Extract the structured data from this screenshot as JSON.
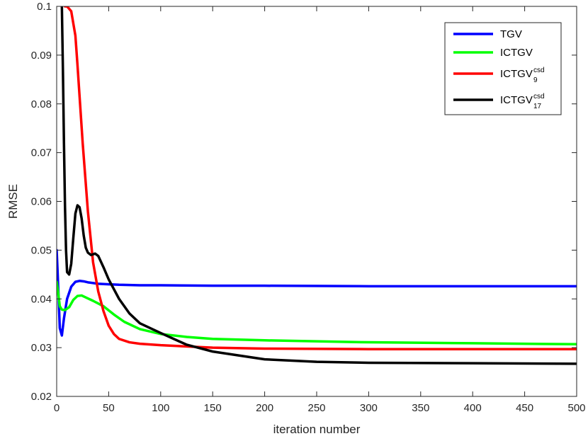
{
  "chart_data": {
    "type": "line",
    "xlabel": "iteration number",
    "ylabel": "RMSE",
    "xlim": [
      0,
      500
    ],
    "ylim": [
      0.02,
      0.1
    ],
    "xticks": [
      0,
      50,
      100,
      150,
      200,
      250,
      300,
      350,
      400,
      450,
      500
    ],
    "yticks": [
      0.02,
      0.03,
      0.04,
      0.05,
      0.06,
      0.07,
      0.08,
      0.09,
      0.1
    ],
    "xtick_labels": [
      "0",
      "50",
      "100",
      "150",
      "200",
      "250",
      "300",
      "350",
      "400",
      "450",
      "500"
    ],
    "ytick_labels": [
      "0.02",
      "0.03",
      "0.04",
      "0.05",
      "0.06",
      "0.07",
      "0.08",
      "0.09",
      "0.1"
    ],
    "grid": false,
    "legend_position": "top-right",
    "series": [
      {
        "name": "TGV",
        "label_main": "TGV",
        "label_sup": "",
        "label_sub": "",
        "color": "#0000ff",
        "x": [
          0,
          1,
          3,
          5,
          7,
          10,
          14,
          18,
          22,
          26,
          30,
          40,
          50,
          60,
          80,
          100,
          150,
          200,
          300,
          400,
          500
        ],
        "y": [
          0.05,
          0.045,
          0.034,
          0.0325,
          0.036,
          0.04,
          0.0425,
          0.0435,
          0.0437,
          0.0436,
          0.0434,
          0.0431,
          0.043,
          0.0429,
          0.0428,
          0.0428,
          0.0427,
          0.0427,
          0.0426,
          0.0426,
          0.0426
        ]
      },
      {
        "name": "ICTGV",
        "label_main": "ICTGV",
        "label_sup": "",
        "label_sub": "",
        "color": "#00ff00",
        "x": [
          0,
          1,
          3,
          5,
          8,
          12,
          16,
          20,
          24,
          28,
          35,
          45,
          55,
          65,
          80,
          100,
          125,
          150,
          200,
          300,
          400,
          500
        ],
        "y": [
          0.0435,
          0.042,
          0.0385,
          0.0378,
          0.0377,
          0.0383,
          0.0398,
          0.0406,
          0.0407,
          0.0403,
          0.0396,
          0.0385,
          0.0368,
          0.0353,
          0.0338,
          0.0328,
          0.0322,
          0.0318,
          0.0315,
          0.0311,
          0.0309,
          0.0307
        ]
      },
      {
        "name": "ICTGV_9^csd",
        "label_main": "ICTGV",
        "label_sup": "csd",
        "label_sub": "9",
        "color": "#ff0000",
        "x": [
          8,
          10,
          14,
          18,
          20,
          25,
          30,
          35,
          40,
          45,
          50,
          55,
          60,
          70,
          80,
          100,
          150,
          200,
          300,
          400,
          500
        ],
        "y": [
          0.1,
          0.1,
          0.099,
          0.094,
          0.088,
          0.072,
          0.058,
          0.0475,
          0.0415,
          0.0375,
          0.0345,
          0.0328,
          0.0318,
          0.0311,
          0.0308,
          0.0305,
          0.03,
          0.0298,
          0.0297,
          0.0297,
          0.0297
        ]
      },
      {
        "name": "ICTGV_17^csd",
        "label_main": "ICTGV",
        "label_sup": "csd",
        "label_sub": "17",
        "color": "#000000",
        "x": [
          5,
          6,
          7,
          8,
          9,
          10,
          12,
          14,
          16,
          18,
          20,
          22,
          24,
          26,
          28,
          30,
          33,
          37,
          40,
          45,
          50,
          60,
          70,
          80,
          100,
          125,
          150,
          200,
          250,
          300,
          400,
          500
        ],
        "y": [
          0.1,
          0.087,
          0.072,
          0.059,
          0.05,
          0.0455,
          0.045,
          0.0472,
          0.0525,
          0.0575,
          0.0592,
          0.0588,
          0.0565,
          0.053,
          0.0505,
          0.0495,
          0.049,
          0.0493,
          0.0488,
          0.0465,
          0.044,
          0.04,
          0.037,
          0.035,
          0.033,
          0.0306,
          0.0292,
          0.0276,
          0.0271,
          0.0269,
          0.0268,
          0.0267
        ]
      }
    ]
  }
}
